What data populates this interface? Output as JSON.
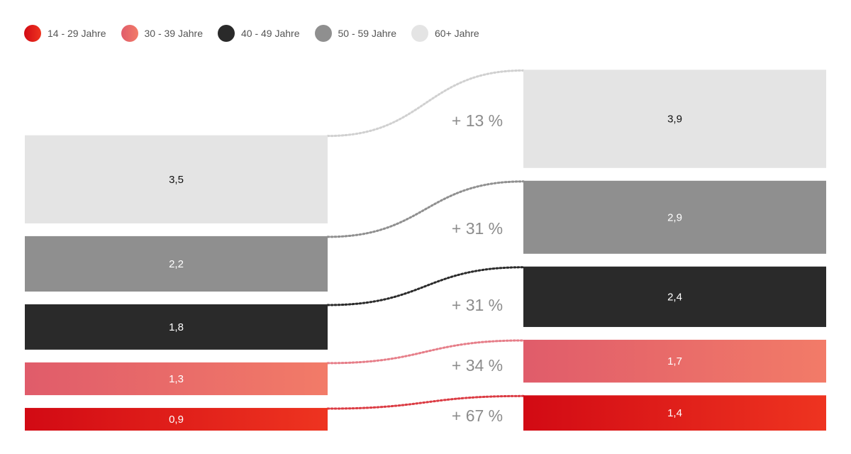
{
  "colors": {
    "group_0": [
      "#d20a14",
      "#ee3420"
    ],
    "group_1": [
      "#e05c6a",
      "#f27b68"
    ],
    "group_2": [
      "#2a2a2a",
      "#2a2a2a"
    ],
    "group_3": [
      "#8f8f8f",
      "#8f8f8f"
    ],
    "group_4": [
      "#e4e4e4",
      "#e4e4e4"
    ],
    "label_dark": "#111111",
    "label_light": "#ffffff",
    "change_text": "#8c8c8c"
  },
  "chart_data": {
    "type": "bar",
    "columns": 2,
    "legend": [
      "14 - 29 Jahre",
      "30 - 39 Jahre",
      "40 - 49 Jahre",
      "50 - 59 Jahre",
      "60+ Jahre"
    ],
    "series": [
      {
        "name": "14 - 29 Jahre",
        "values": [
          0.9,
          1.4
        ],
        "labels": [
          "0,9",
          "1,4"
        ],
        "change": "+ 67 %"
      },
      {
        "name": "30 - 39 Jahre",
        "values": [
          1.3,
          1.7
        ],
        "labels": [
          "1,3",
          "1,7"
        ],
        "change": "+ 34 %"
      },
      {
        "name": "40 - 49 Jahre",
        "values": [
          1.8,
          2.4
        ],
        "labels": [
          "1,8",
          "2,4"
        ],
        "change": "+ 31 %"
      },
      {
        "name": "50 - 59 Jahre",
        "values": [
          2.2,
          2.9
        ],
        "labels": [
          "2,2",
          "2,9"
        ],
        "change": "+ 31 %"
      },
      {
        "name": "60+ Jahre",
        "values": [
          3.5,
          3.9
        ],
        "labels": [
          "3,5",
          "3,9"
        ],
        "change": "+ 13 %"
      }
    ],
    "legend_position": "top-left",
    "grid": false
  }
}
